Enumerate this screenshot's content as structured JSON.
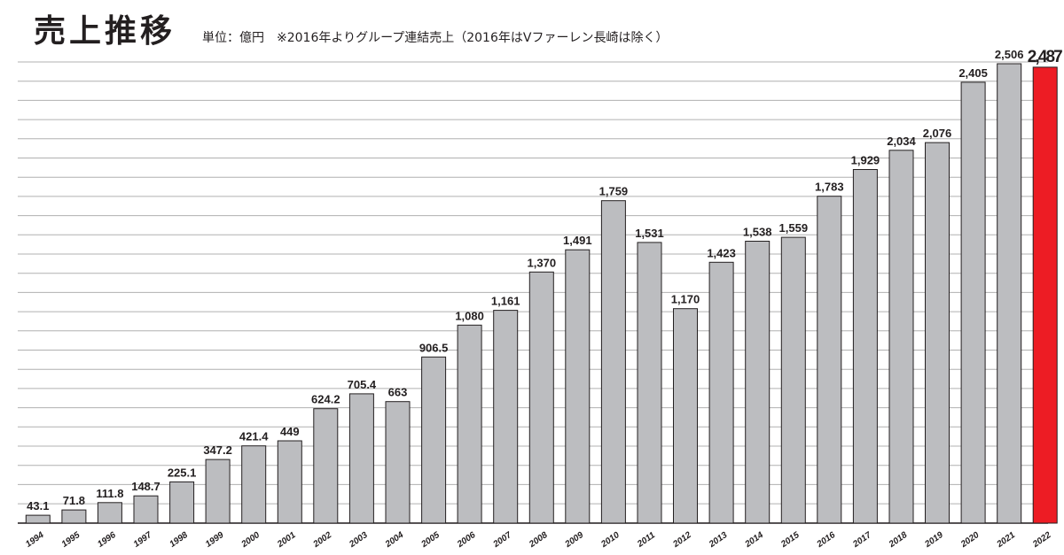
{
  "header": {
    "title": "売上推移",
    "subtitle": "単位：億円　※2016年よりグループ連結売上（2016年はVファーレン長崎は除く）"
  },
  "chart_data": {
    "type": "bar",
    "title": "売上推移",
    "ylabel": "単位：億円",
    "grid": true,
    "ylim": [
      0,
      2600
    ],
    "categories": [
      "1994",
      "1995",
      "1996",
      "1997",
      "1998",
      "1999",
      "2000",
      "2001",
      "2002",
      "2003",
      "2004",
      "2005",
      "2006",
      "2007",
      "2008",
      "2009",
      "2010",
      "2011",
      "2012",
      "2013",
      "2014",
      "2015",
      "2016",
      "2017",
      "2018",
      "2019",
      "2020",
      "2021",
      "2022"
    ],
    "values": [
      43.1,
      71.8,
      111.8,
      148.7,
      225.1,
      347.2,
      421.4,
      449,
      624.2,
      705.4,
      663,
      906.5,
      1080,
      1161,
      1370,
      1491,
      1759,
      1531,
      1170,
      1423,
      1538,
      1559,
      1783,
      1929,
      2034,
      2076,
      2405,
      2506,
      2487
    ],
    "value_labels": [
      "43.1",
      "71.8",
      "111.8",
      "148.7",
      "225.1",
      "347.2",
      "421.4",
      "449",
      "624.2",
      "705.4",
      "663",
      "906.5",
      "1,080",
      "1,161",
      "1,370",
      "1,491",
      "1,759",
      "1,531",
      "1,170",
      "1,423",
      "1,538",
      "1,559",
      "1,783",
      "1,929",
      "2,034",
      "2,076",
      "2,405",
      "2,506",
      "2,487"
    ],
    "colors": {
      "bar": "#bcbdc0",
      "highlight": "#ed1c24",
      "grid": "#b0b0b0",
      "text": "#231f20"
    },
    "highlight_category": "2022"
  }
}
